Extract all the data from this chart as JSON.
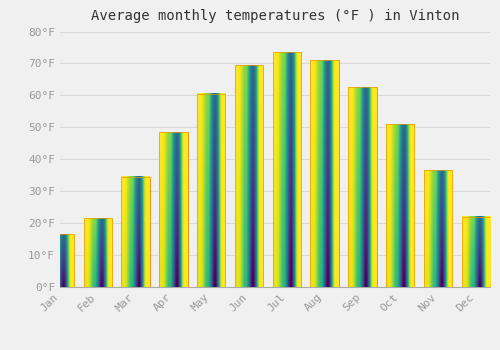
{
  "title": "Average monthly temperatures (°F ) in Vinton",
  "months": [
    "Jan",
    "Feb",
    "Mar",
    "Apr",
    "May",
    "Jun",
    "Jul",
    "Aug",
    "Sep",
    "Oct",
    "Nov",
    "Dec"
  ],
  "temperatures": [
    16.5,
    21.5,
    34.5,
    48.5,
    60.5,
    69.5,
    73.5,
    71.0,
    62.5,
    51.0,
    36.5,
    22.0
  ],
  "bar_color_top": "#FFCF55",
  "bar_color_bottom": "#F5A800",
  "bar_edge_color": "#E8960A",
  "background_color": "#F0F0F0",
  "grid_color": "#D8D8D8",
  "ylim": [
    0,
    80
  ],
  "yticks": [
    0,
    10,
    20,
    30,
    40,
    50,
    60,
    70,
    80
  ],
  "ylabel_suffix": "°F",
  "title_fontsize": 10,
  "tick_fontsize": 8,
  "tick_color": "#999999",
  "font_family": "monospace",
  "bar_width": 0.75
}
